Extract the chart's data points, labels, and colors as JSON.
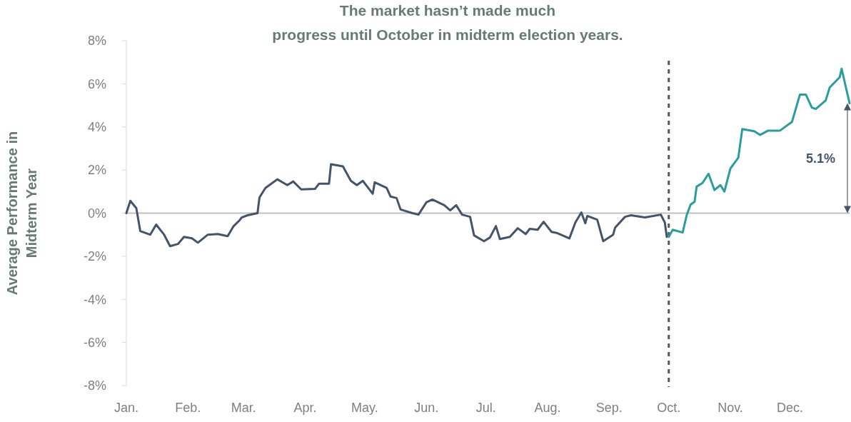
{
  "chart_data": {
    "type": "line",
    "title": "The market hasn’t made much progress until October in midterm election years.",
    "ylabel": "Average Performance in Midterm Year",
    "xlim": [
      "--01-01",
      "--12-31"
    ],
    "xticks": [
      {
        "value": "--01-01",
        "label": "Jan."
      },
      {
        "value": "--02-01",
        "label": "Feb."
      },
      {
        "value": "--03-01",
        "label": "Mar."
      },
      {
        "value": "--04-01",
        "label": "Apr."
      },
      {
        "value": "--05-01",
        "label": "May."
      },
      {
        "value": "--06-01",
        "label": "Jun."
      },
      {
        "value": "--07-01",
        "label": "Jul."
      },
      {
        "value": "--08-01",
        "label": "Aug."
      },
      {
        "value": "--09-01",
        "label": "Sep."
      },
      {
        "value": "--10-01",
        "label": "Oct."
      },
      {
        "value": "--11-01",
        "label": "Nov."
      },
      {
        "value": "--12-01",
        "label": "Dec."
      }
    ],
    "ylim": [
      -8,
      8
    ],
    "yticks": [
      {
        "value": -8,
        "label": "-8%"
      },
      {
        "value": -6,
        "label": "-6%"
      },
      {
        "value": -4,
        "label": "-4%"
      },
      {
        "value": -2,
        "label": "-2%"
      },
      {
        "value": 0,
        "label": "0%"
      },
      {
        "value": 2,
        "label": "2%"
      },
      {
        "value": 4,
        "label": "4%"
      },
      {
        "value": 6,
        "label": "6%"
      },
      {
        "value": 8,
        "label": "8%"
      }
    ],
    "grid": false,
    "line_style": "solid",
    "marker": "none",
    "series": [
      {
        "color": "#44546a",
        "x": [
          "--01-01",
          "--01-03",
          "--01-06",
          "--01-08",
          "--01-13",
          "--01-16",
          "--01-20",
          "--01-23",
          "--01-27",
          "--01-30",
          "--02-03",
          "--02-06",
          "--02-11",
          "--02-16",
          "--02-21",
          "--02-24",
          "--02-27",
          "--02-28",
          "--03-03",
          "--03-08",
          "--03-09",
          "--03-12",
          "--03-18",
          "--03-23",
          "--03-26",
          "--03-30",
          "--04-06",
          "--04-08",
          "--04-13",
          "--04-14",
          "--04-20",
          "--04-24",
          "--04-27",
          "--04-30",
          "--05-05",
          "--05-06",
          "--05-12",
          "--05-14",
          "--05-17",
          "--05-19",
          "--05-25",
          "--05-28",
          "--06-01",
          "--06-04",
          "--06-10",
          "--06-13",
          "--06-16",
          "--06-19",
          "--06-23",
          "--06-25",
          "--06-30",
          "--07-03",
          "--07-06",
          "--07-08",
          "--07-13",
          "--07-17",
          "--07-21",
          "--07-23",
          "--07-27",
          "--07-30",
          "--08-03",
          "--08-06",
          "--08-12",
          "--08-15",
          "--08-18",
          "--08-20",
          "--08-21",
          "--08-26",
          "--08-29",
          "--09-03",
          "--09-04",
          "--09-09",
          "--09-12",
          "--09-19",
          "--09-27",
          "--09-29",
          "--09-30"
        ],
        "values": [
          0,
          0.57,
          0.23,
          -0.83,
          -1,
          -0.53,
          -1,
          -1.53,
          -1.43,
          -1.1,
          -1.17,
          -1.37,
          -1,
          -0.97,
          -1.07,
          -0.6,
          -0.33,
          -0.2,
          -0.1,
          0,
          0.73,
          1.17,
          1.57,
          1.3,
          1.47,
          1.1,
          1.13,
          1.37,
          1.37,
          2.27,
          2.17,
          1.5,
          1.3,
          1.5,
          0.9,
          1.43,
          1.17,
          0.77,
          0.7,
          0.17,
          0,
          -0.07,
          0.5,
          0.63,
          0.37,
          0.13,
          0.37,
          -0.07,
          -0.17,
          -1.03,
          -1.3,
          -1.13,
          -0.6,
          -1.2,
          -1.1,
          -0.7,
          -0.97,
          -0.73,
          -0.77,
          -0.4,
          -0.87,
          -0.93,
          -1.17,
          -0.43,
          0.03,
          -0.47,
          -0.13,
          -0.3,
          -1.3,
          -1,
          -0.67,
          -0.17,
          -0.1,
          -0.2,
          -0.07,
          -0.43,
          -1.1
        ]
      },
      {
        "color": "#2a9d9f",
        "x": [
          "--10-01",
          "--10-03",
          "--10-08",
          "--10-10",
          "--10-12",
          "--10-14",
          "--10-15",
          "--10-18",
          "--10-21",
          "--10-24",
          "--10-27",
          "--10-29",
          "--11-01",
          "--11-05",
          "--11-07",
          "--11-13",
          "--11-16",
          "--11-20",
          "--11-26",
          "--12-02",
          "--12-06",
          "--12-09",
          "--12-12",
          "--12-14",
          "--12-19",
          "--12-21",
          "--12-26",
          "--12-27",
          "--12-31"
        ],
        "values": [
          -1.1,
          -0.77,
          -0.9,
          -0.1,
          0.4,
          0.53,
          1.23,
          1.4,
          1.83,
          1.07,
          1.3,
          1,
          2.07,
          2.57,
          3.9,
          3.8,
          3.63,
          3.83,
          3.83,
          4.23,
          5.5,
          5.5,
          4.9,
          4.83,
          5.23,
          5.83,
          6.3,
          6.7,
          5.1
        ]
      }
    ],
    "ref_lines": [
      {
        "axis": "x",
        "value": "--10-01",
        "color": "#595959",
        "line_style": "dashed"
      },
      {
        "axis": "y",
        "value": 0,
        "color": "#bfbfbf",
        "line_style": "solid"
      }
    ],
    "annotations": [
      "5.1%"
    ]
  }
}
